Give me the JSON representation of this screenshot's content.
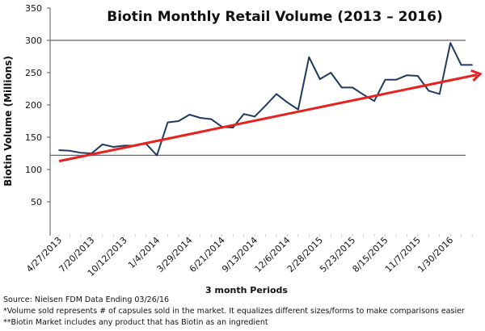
{
  "chart_data": {
    "type": "line",
    "title": "Biotin Monthly Retail Volume (2013 – 2016)",
    "xlabel": "3 month Periods",
    "ylabel": "Biotin Volume (Millions)",
    "ylim": [
      0,
      350
    ],
    "yticks": [
      50,
      100,
      150,
      200,
      250,
      300,
      350
    ],
    "x_tick_labels": [
      "4/27/2013",
      "7/20/2013",
      "10/12/2013",
      "1/4/2014",
      "3/29/2014",
      "6/21/2014",
      "9/13/2014",
      "12/6/2014",
      "2/28/2015",
      "5/23/2015",
      "8/15/2015",
      "11/7/2015",
      "1/30/2016"
    ],
    "x_tick_every": 3,
    "series": [
      {
        "name": "Biotin Volume",
        "color": "#1f3a5f",
        "values": [
          130,
          129,
          126,
          125,
          139,
          135,
          137,
          137,
          140,
          122,
          173,
          175,
          185,
          180,
          178,
          166,
          165,
          186,
          182,
          199,
          217,
          204,
          193,
          274,
          240,
          250,
          227,
          227,
          216,
          206,
          239,
          239,
          246,
          245,
          222,
          217,
          296,
          262,
          262
        ]
      }
    ],
    "trend": {
      "name": "Trend",
      "color": "#e8201e",
      "start": 113,
      "end": 248
    },
    "reference_lines": [
      300,
      122
    ],
    "grid": false
  },
  "footnotes": {
    "source": "Source:  Nielsen FDM Data Ending 03/26/16",
    "note1": "*Volume sold represents # of capsules sold in the market. It equalizes different sizes/forms to make comparisons easier",
    "note2": "**Biotin Market includes any product that has Biotin as an ingredient"
  }
}
